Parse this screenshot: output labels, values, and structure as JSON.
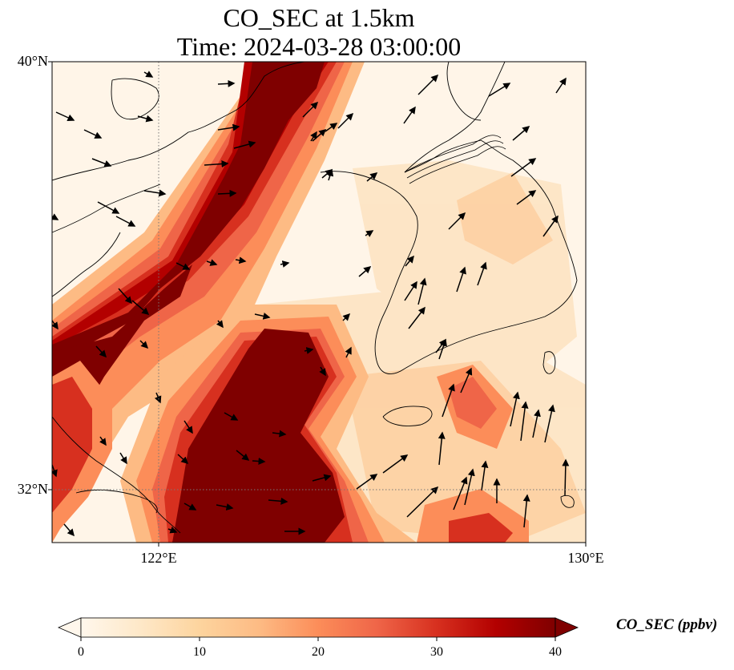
{
  "title": {
    "line1": "CO_SEC at 1.5km",
    "line2": "Time: 2024-03-28 03:00:00"
  },
  "axes": {
    "lat_labels": [
      "40°N",
      "32°N"
    ],
    "lon_labels": [
      "122°E",
      "130°E"
    ],
    "lat_range": [
      31,
      40
    ],
    "lon_range": [
      120,
      130
    ],
    "gridlines": {
      "lat": [
        32
      ],
      "lon": [
        122
      ],
      "style": "dotted"
    }
  },
  "colorbar": {
    "label": "CO_SEC (ppbv)",
    "ticks": [
      "0",
      "10",
      "20",
      "30",
      "40"
    ],
    "min": 0,
    "max": 40,
    "extend": "both",
    "colormap": [
      "#fff7ec",
      "#fee8c8",
      "#fdd49e",
      "#fdbb84",
      "#fc8d59",
      "#ef6548",
      "#d7301f",
      "#b30000",
      "#7f0000"
    ]
  },
  "map": {
    "field": "CO_SEC",
    "level": "1.5km",
    "units": "ppbv",
    "features": [
      "coastlines",
      "borders",
      "wind vectors"
    ],
    "plume_description": "high CO_SEC band from northeast to southwest across Yellow Sea; secondary maxima near 31–34°N, 122–126°E"
  }
}
